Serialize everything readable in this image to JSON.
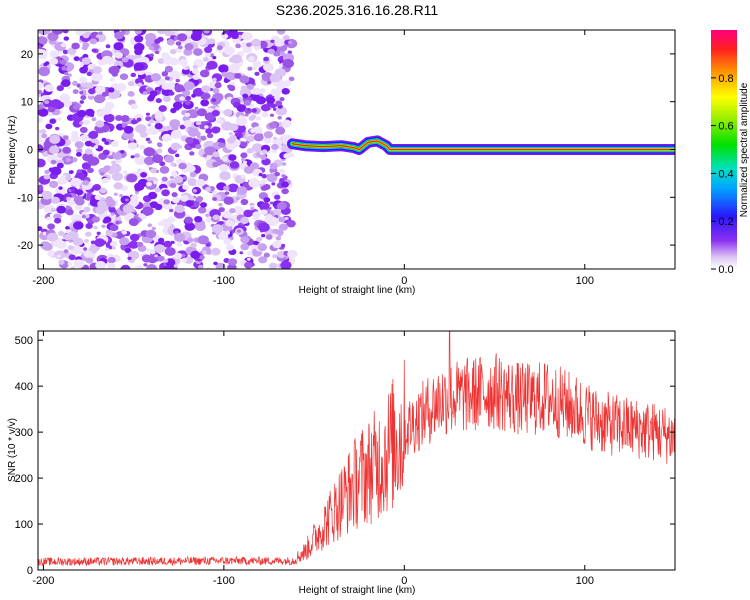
{
  "title": "S236.2025.316.16.28.R11",
  "chart_data": [
    {
      "type": "heatmap",
      "xlabel": "Height of straight line (km)",
      "ylabel": "Frequency (Hz)",
      "xlim": [
        -203,
        150
      ],
      "ylim": [
        -25,
        25
      ],
      "xticks": [
        -200,
        -100,
        0,
        100
      ],
      "yticks": [
        -20,
        -10,
        0,
        10,
        20
      ],
      "noise_region_x": [
        -203,
        -62
      ],
      "signal_ridge": [
        {
          "x": -62,
          "y": 1.2
        },
        {
          "x": -55,
          "y": 0.8
        },
        {
          "x": -45,
          "y": 0.6
        },
        {
          "x": -35,
          "y": 0.8
        },
        {
          "x": -28,
          "y": 0.4
        },
        {
          "x": -25,
          "y": 0.0
        },
        {
          "x": -20,
          "y": 1.5
        },
        {
          "x": -15,
          "y": 1.8
        },
        {
          "x": -10,
          "y": 0.8
        },
        {
          "x": -8,
          "y": 0.0
        },
        {
          "x": 0,
          "y": 0.0
        },
        {
          "x": 150,
          "y": 0.0
        }
      ],
      "colorbar": {
        "label": "Normalized spectral amplitude",
        "range": [
          0,
          1
        ],
        "ticks": [
          "0.0",
          "0.2",
          "0.4",
          "0.6",
          "0.8"
        ]
      }
    },
    {
      "type": "line",
      "xlabel": "Height of straight line (km)",
      "ylabel": "SNR (10 * v/v)",
      "xlim": [
        -203,
        150
      ],
      "ylim": [
        0,
        520
      ],
      "xticks": [
        -200,
        -100,
        0,
        100
      ],
      "yticks": [
        0,
        100,
        200,
        300,
        400,
        500
      ],
      "series": [
        {
          "name": "SNR",
          "color": "#ee3333",
          "envelope": [
            {
              "x": -203,
              "y": 18
            },
            {
              "x": -100,
              "y": 20
            },
            {
              "x": -62,
              "y": 20
            },
            {
              "x": -55,
              "y": 40
            },
            {
              "x": -45,
              "y": 95
            },
            {
              "x": -35,
              "y": 150
            },
            {
              "x": -25,
              "y": 200
            },
            {
              "x": -15,
              "y": 230
            },
            {
              "x": -5,
              "y": 280
            },
            {
              "x": 5,
              "y": 320
            },
            {
              "x": 20,
              "y": 370
            },
            {
              "x": 35,
              "y": 380
            },
            {
              "x": 50,
              "y": 390
            },
            {
              "x": 65,
              "y": 370
            },
            {
              "x": 80,
              "y": 375
            },
            {
              "x": 95,
              "y": 350
            },
            {
              "x": 110,
              "y": 320
            },
            {
              "x": 125,
              "y": 310
            },
            {
              "x": 140,
              "y": 300
            },
            {
              "x": 150,
              "y": 290
            }
          ],
          "peak": {
            "x": 25,
            "y": 520
          }
        }
      ]
    }
  ]
}
